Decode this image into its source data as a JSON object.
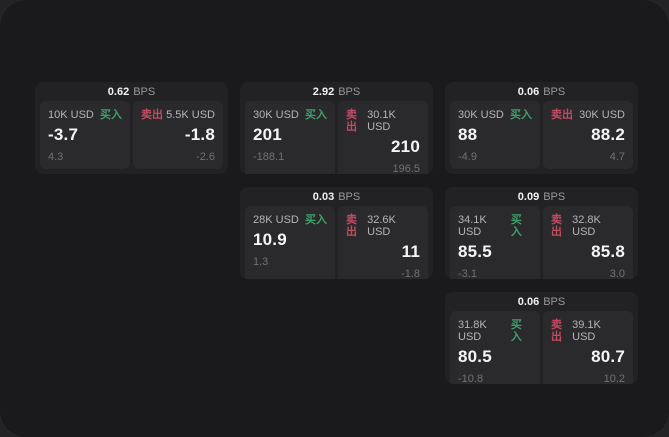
{
  "colors": {
    "buy_green": "#3f9f6c",
    "sell_red": "#c44a62",
    "window_bg": "#1a1a1c",
    "card_bg": "#222224",
    "panel_bg": "#2a2a2c"
  },
  "labels": {
    "bps_unit": "BPS",
    "buy": "买入",
    "sell": "卖出"
  },
  "cards": [
    {
      "bps_value": "0.62",
      "bps_unit": "BPS",
      "buy": {
        "amount": "10K USD",
        "side_label": "买入",
        "price": "-3.7",
        "sub": "4.3"
      },
      "sell": {
        "side_label": "卖出",
        "amount": "5.5K USD",
        "price": "-1.8",
        "sub": "-2.6"
      }
    },
    {
      "bps_value": "2.92",
      "bps_unit": "BPS",
      "buy": {
        "amount": "30K USD",
        "side_label": "买入",
        "price": "201",
        "sub": "-188.1"
      },
      "sell": {
        "side_label": "卖出",
        "amount": "30.1K USD",
        "price": "210",
        "sub": "196.5"
      }
    },
    {
      "bps_value": "0.06",
      "bps_unit": "BPS",
      "buy": {
        "amount": "30K USD",
        "side_label": "买入",
        "price": "88",
        "sub": "-4.9"
      },
      "sell": {
        "side_label": "卖出",
        "amount": "30K USD",
        "price": "88.2",
        "sub": "4.7"
      }
    },
    {
      "bps_value": "0.03",
      "bps_unit": "BPS",
      "buy": {
        "amount": "28K USD",
        "side_label": "买入",
        "price": "10.9",
        "sub": "1.3"
      },
      "sell": {
        "side_label": "卖出",
        "amount": "32.6K USD",
        "price": "11",
        "sub": "-1.8"
      }
    },
    {
      "bps_value": "0.09",
      "bps_unit": "BPS",
      "buy": {
        "amount": "34.1K USD",
        "side_label": "买入",
        "price": "85.5",
        "sub": "-3.1"
      },
      "sell": {
        "side_label": "卖出",
        "amount": "32.8K USD",
        "price": "85.8",
        "sub": "3.0"
      }
    },
    {
      "bps_value": "0.06",
      "bps_unit": "BPS",
      "buy": {
        "amount": "31.8K USD",
        "side_label": "买入",
        "price": "80.5",
        "sub": "-10.8"
      },
      "sell": {
        "side_label": "卖出",
        "amount": "39.1K USD",
        "price": "80.7",
        "sub": "10.2"
      }
    }
  ]
}
